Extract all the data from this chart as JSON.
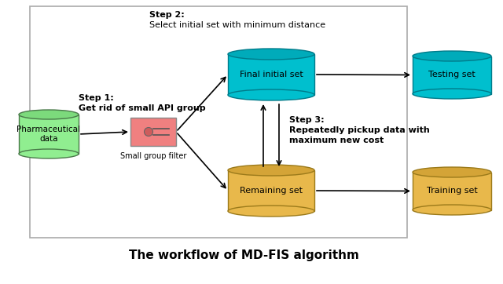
{
  "title": "The workflow of MD-FIS algorithm",
  "title_fontsize": 11,
  "title_fontweight": "bold",
  "pharma_label": "Pharmaceutical\ndata",
  "pharma_color": "#90EE90",
  "pharma_edge": "#4a7a4a",
  "filter_label": "Small group filter",
  "filter_color": "#F08080",
  "filter_edge": "#888888",
  "final_set_label": "Final initial set",
  "final_set_color": "#00BFCE",
  "final_set_edge": "#007B8A",
  "final_set_top_color": "#00BFCE",
  "remaining_set_label": "Remaining set",
  "remaining_set_color": "#E8B84B",
  "remaining_set_edge": "#9B7A1A",
  "testing_set_label": "Testing set",
  "testing_set_color": "#00BFCE",
  "testing_set_edge": "#007B8A",
  "training_set_label": "Training set",
  "training_set_color": "#E8B84B",
  "training_set_edge": "#9B7A1A",
  "step1_bold": "Step 1:",
  "step1_text": "Get rid of small API group",
  "step2_bold": "Step 2:",
  "step2_text": "Select initial set with minimum distance",
  "step3_bold": "Step 3:",
  "step3_text1": "Repeatedly pickup data with",
  "step3_text2": "maximum new cost",
  "text_color": "#000000",
  "arrow_color": "#000000",
  "box_edge": "#aaaaaa"
}
